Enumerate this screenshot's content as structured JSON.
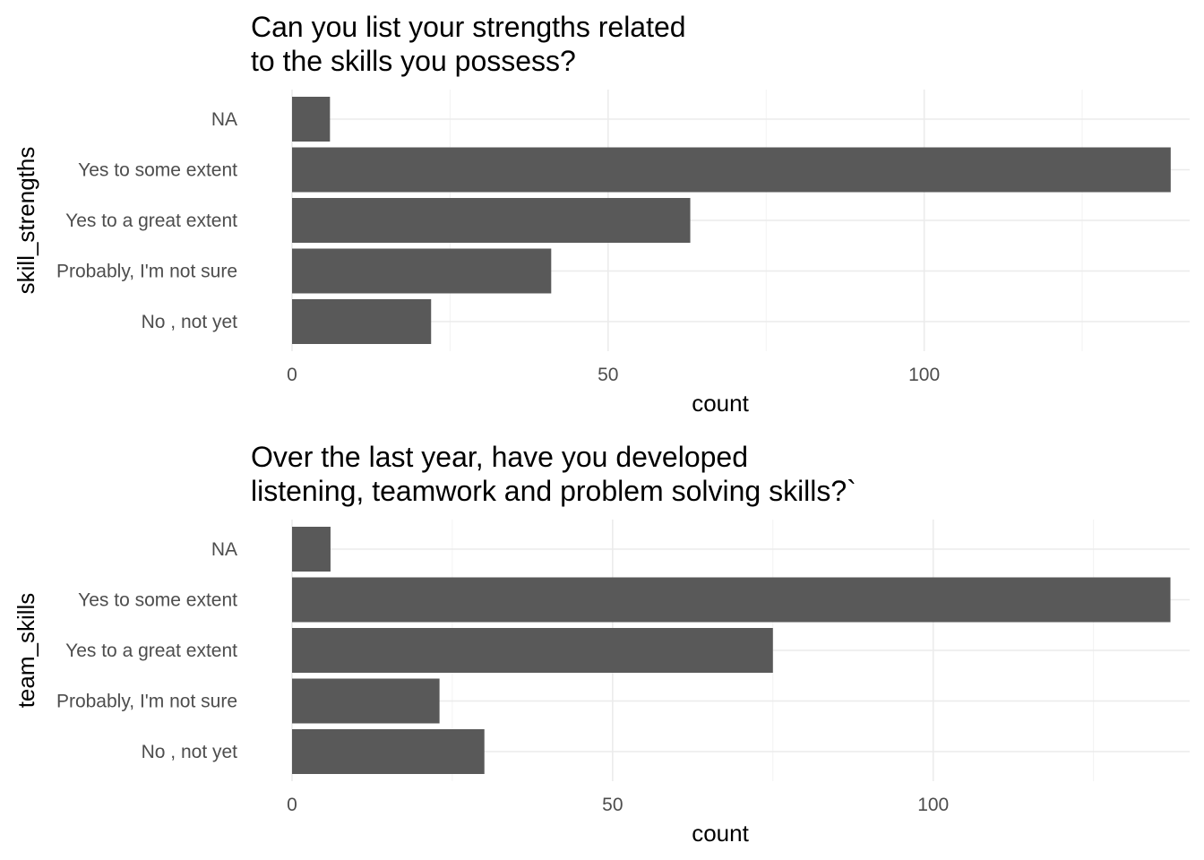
{
  "chart_data": [
    {
      "type": "bar",
      "orientation": "horizontal",
      "title_lines": [
        "Can you list your strengths related",
        " to the skills you possess?"
      ],
      "xlabel": "count",
      "ylabel": "skill_strengths",
      "categories": [
        "NA",
        "Yes to some extent",
        "Yes to a great extent",
        "Probably, I'm not sure",
        "No , not yet"
      ],
      "values": [
        6,
        139,
        63,
        41,
        22
      ],
      "xlim": [
        0,
        142
      ],
      "xticks": [
        0,
        50,
        100
      ],
      "grid": true,
      "bar_color": "#595959"
    },
    {
      "type": "bar",
      "orientation": "horizontal",
      "title_lines": [
        "Over the last year, have you developed",
        " listening, teamwork and problem solving skills?`"
      ],
      "xlabel": "count",
      "ylabel": "team_skills",
      "categories": [
        "NA",
        "Yes to some extent",
        "Yes to a great extent",
        "Probably, I'm not sure",
        "No , not yet"
      ],
      "values": [
        6,
        137,
        75,
        23,
        30
      ],
      "xlim": [
        0,
        140
      ],
      "xticks": [
        0,
        50,
        100
      ],
      "grid": true,
      "bar_color": "#595959"
    }
  ]
}
